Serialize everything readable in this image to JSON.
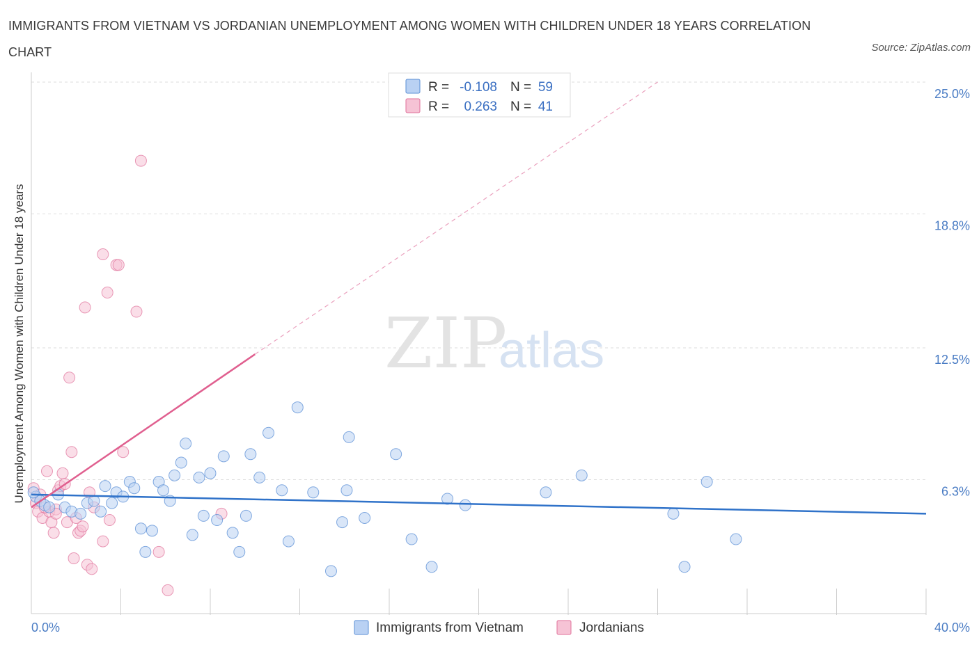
{
  "title": "IMMIGRANTS FROM VIETNAM VS JORDANIAN UNEMPLOYMENT AMONG WOMEN WITH CHILDREN UNDER 18 YEARS CORRELATION CHART",
  "source": "Source: ZipAtlas.com",
  "watermark": {
    "zip": "ZIP",
    "atlas": "atlas"
  },
  "colors": {
    "blue": "#5b8fd6",
    "blue_fill": "#b9d1f3",
    "pink": "#e0709a",
    "pink_fill": "#f6c3d5"
  },
  "legend": {
    "r_label": "R =",
    "n_label": "N =",
    "rows": [
      {
        "r": "-0.108",
        "n": "59"
      },
      {
        "r": "0.263",
        "n": "41"
      }
    ]
  },
  "chart_data": {
    "type": "scatter",
    "title": "IMMIGRANTS FROM VIETNAM VS JORDANIAN UNEMPLOYMENT AMONG WOMEN WITH CHILDREN UNDER 18 YEARS CORRELATION CHART",
    "xlabel": "",
    "ylabel": "Unemployment Among Women with Children Under 18 years",
    "xlim": [
      0,
      40
    ],
    "ylim": [
      0,
      25
    ],
    "x_tick_labels": [
      "0.0%",
      "40.0%"
    ],
    "y_ticks": [
      6.3,
      12.5,
      18.8,
      25.0
    ],
    "y_tick_labels": [
      "6.3%",
      "12.5%",
      "18.8%",
      "25.0%"
    ],
    "grid": true,
    "series": [
      {
        "name": "Immigrants from Vietnam",
        "r": -0.108,
        "n": 59,
        "trend": {
          "x0": 0,
          "y0": 5.6,
          "x1": 40,
          "y1": 4.7
        },
        "points": [
          [
            0.2,
            5.5
          ],
          [
            0.4,
            5.3
          ],
          [
            0.6,
            5.1
          ],
          [
            0.8,
            5.0
          ],
          [
            1.2,
            5.6
          ],
          [
            1.5,
            5.0
          ],
          [
            1.8,
            4.8
          ],
          [
            2.2,
            4.7
          ],
          [
            2.5,
            5.2
          ],
          [
            2.8,
            5.3
          ],
          [
            3.1,
            4.8
          ],
          [
            3.3,
            6.0
          ],
          [
            3.6,
            5.2
          ],
          [
            3.8,
            5.7
          ],
          [
            4.1,
            5.5
          ],
          [
            4.4,
            6.2
          ],
          [
            4.6,
            5.9
          ],
          [
            4.9,
            4.0
          ],
          [
            5.1,
            2.9
          ],
          [
            5.4,
            3.9
          ],
          [
            5.7,
            6.2
          ],
          [
            5.9,
            5.8
          ],
          [
            6.2,
            5.3
          ],
          [
            6.4,
            6.5
          ],
          [
            6.7,
            7.1
          ],
          [
            6.9,
            8.0
          ],
          [
            7.2,
            3.7
          ],
          [
            7.5,
            6.4
          ],
          [
            7.7,
            4.6
          ],
          [
            8.0,
            6.6
          ],
          [
            8.3,
            4.4
          ],
          [
            8.6,
            7.4
          ],
          [
            9.0,
            3.8
          ],
          [
            9.3,
            2.9
          ],
          [
            9.6,
            4.6
          ],
          [
            9.8,
            7.5
          ],
          [
            10.2,
            6.4
          ],
          [
            10.6,
            8.5
          ],
          [
            11.2,
            5.8
          ],
          [
            11.5,
            3.4
          ],
          [
            11.9,
            9.7
          ],
          [
            12.6,
            5.7
          ],
          [
            13.4,
            2.0
          ],
          [
            13.9,
            4.3
          ],
          [
            14.1,
            5.8
          ],
          [
            14.2,
            8.3
          ],
          [
            14.9,
            4.5
          ],
          [
            16.3,
            7.5
          ],
          [
            17.0,
            3.5
          ],
          [
            17.9,
            2.2
          ],
          [
            18.6,
            5.4
          ],
          [
            19.4,
            5.1
          ],
          [
            23.0,
            5.7
          ],
          [
            24.6,
            6.5
          ],
          [
            28.7,
            4.7
          ],
          [
            29.2,
            2.2
          ],
          [
            30.2,
            6.2
          ],
          [
            31.5,
            3.5
          ],
          [
            0.1,
            5.7
          ]
        ]
      },
      {
        "name": "Jordanians",
        "r": 0.263,
        "n": 41,
        "trend": {
          "x0": 0,
          "y0": 5.0,
          "x1": 10,
          "y1": 12.2
        },
        "trend_extended": {
          "x0": 10,
          "y0": 12.2,
          "x1": 28,
          "y1": 25.0
        },
        "points": [
          [
            0.1,
            5.9
          ],
          [
            0.2,
            5.2
          ],
          [
            0.3,
            4.8
          ],
          [
            0.5,
            4.5
          ],
          [
            0.7,
            6.7
          ],
          [
            0.8,
            4.8
          ],
          [
            0.9,
            4.3
          ],
          [
            1.0,
            3.8
          ],
          [
            1.1,
            4.9
          ],
          [
            1.2,
            5.8
          ],
          [
            1.3,
            6.0
          ],
          [
            1.4,
            6.6
          ],
          [
            1.5,
            6.1
          ],
          [
            1.6,
            4.3
          ],
          [
            1.7,
            11.1
          ],
          [
            1.8,
            7.6
          ],
          [
            1.9,
            2.6
          ],
          [
            2.0,
            4.5
          ],
          [
            2.1,
            3.8
          ],
          [
            2.2,
            3.9
          ],
          [
            2.3,
            4.1
          ],
          [
            2.4,
            14.4
          ],
          [
            2.5,
            2.3
          ],
          [
            2.6,
            5.7
          ],
          [
            2.7,
            2.1
          ],
          [
            2.8,
            5.0
          ],
          [
            3.2,
            3.4
          ],
          [
            3.2,
            16.9
          ],
          [
            3.4,
            15.1
          ],
          [
            3.5,
            4.4
          ],
          [
            3.8,
            16.4
          ],
          [
            3.9,
            16.4
          ],
          [
            4.1,
            7.6
          ],
          [
            4.7,
            14.2
          ],
          [
            4.9,
            21.3
          ],
          [
            5.7,
            2.9
          ],
          [
            6.1,
            1.1
          ],
          [
            8.5,
            4.7
          ],
          [
            0.4,
            5.6
          ],
          [
            1.1,
            4.7
          ],
          [
            0.6,
            5.0
          ]
        ]
      }
    ]
  }
}
